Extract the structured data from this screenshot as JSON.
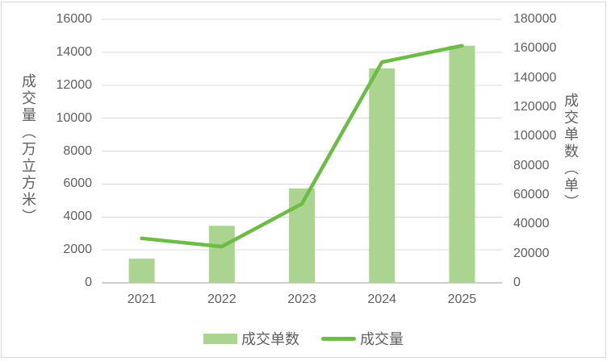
{
  "chart_data": {
    "type": "bar",
    "subtype": "bar-line-combo",
    "categories": [
      "2021",
      "2022",
      "2023",
      "2024",
      "2025"
    ],
    "series": [
      {
        "name": "成交单数",
        "type": "bar",
        "axis": "right",
        "values": [
          16500,
          39000,
          64500,
          146500,
          162000
        ]
      },
      {
        "name": "成交量",
        "type": "line",
        "axis": "left",
        "values": [
          2700,
          2200,
          4800,
          13400,
          14400
        ]
      }
    ],
    "left_axis": {
      "title": "成交量（万立方米）",
      "min": 0,
      "max": 16000,
      "step": 2000,
      "ticks": [
        "0",
        "2000",
        "4000",
        "6000",
        "8000",
        "10000",
        "12000",
        "14000",
        "16000"
      ]
    },
    "right_axis": {
      "title": "成交单数（单）",
      "min": 0,
      "max": 180000,
      "step": 20000,
      "ticks": [
        "0",
        "20000",
        "40000",
        "60000",
        "80000",
        "100000",
        "120000",
        "140000",
        "160000",
        "180000"
      ]
    },
    "title": "",
    "grid": true,
    "legend_position": "bottom",
    "colors": {
      "bar": "#aad48f",
      "line": "#6cbc45",
      "grid": "#d9d9d9",
      "axis_line": "#cfcfcf",
      "text": "#5f5f5f",
      "border": "#d9d9d9"
    }
  }
}
